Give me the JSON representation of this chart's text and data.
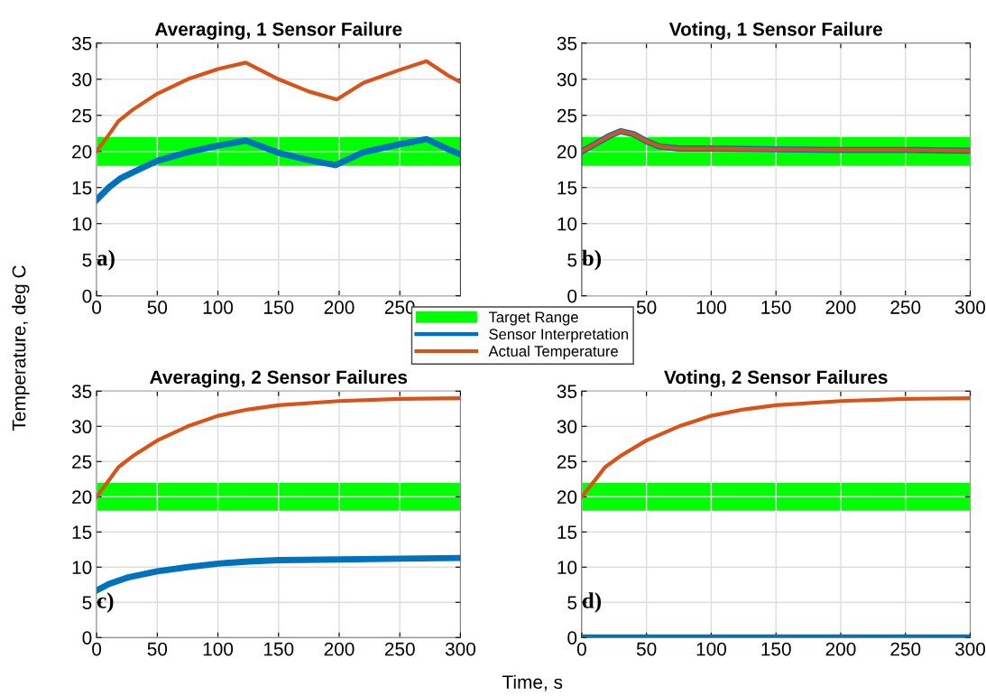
{
  "chart_data": [
    {
      "type": "line",
      "title": "Averaging, 1 Sensor Failure",
      "ylabel": "Temperature, deg C",
      "xlim": [
        0,
        300
      ],
      "ylim": [
        0,
        35
      ],
      "xticks": [
        0,
        50,
        100,
        150,
        200,
        250
      ],
      "yticks": [
        0,
        5,
        10,
        15,
        20,
        25,
        30,
        35
      ],
      "grid": true,
      "legend": "bottom",
      "annotations": [
        "a)"
      ],
      "bands": [
        {
          "axis": "y",
          "from": 18,
          "to": 22,
          "label": "Target Range",
          "color": "#00ff00"
        }
      ],
      "series": [
        {
          "name": "Sensor Interpretation",
          "color": "#0072bd",
          "x": [
            0,
            10,
            20,
            35,
            50,
            75,
            100,
            123,
            150,
            175,
            197,
            220,
            250,
            272,
            290,
            300
          ],
          "values": [
            13.3,
            15,
            16.3,
            17.5,
            18.7,
            19.9,
            20.8,
            21.5,
            19.8,
            18.8,
            18.1,
            19.9,
            21,
            21.7,
            20.3,
            19.6
          ]
        },
        {
          "name": "Actual Temperature",
          "color": "#d95319",
          "x": [
            0,
            10,
            18,
            30,
            50,
            75,
            100,
            123,
            150,
            175,
            198,
            220,
            250,
            272,
            290,
            300
          ],
          "values": [
            20,
            22.3,
            24.2,
            25.8,
            28,
            30,
            31.4,
            32.3,
            30,
            28.3,
            27.2,
            29.5,
            31.3,
            32.5,
            30.5,
            29.6
          ]
        }
      ]
    },
    {
      "type": "line",
      "title": "Voting, 1 Sensor Failure",
      "xlim": [
        0,
        300
      ],
      "ylim": [
        0,
        35
      ],
      "xticks": [
        50,
        100,
        150,
        200,
        250,
        300
      ],
      "yticks": [
        0,
        5,
        10,
        15,
        20,
        25,
        30,
        35
      ],
      "grid": true,
      "annotations": [
        "b)"
      ],
      "bands": [
        {
          "axis": "y",
          "from": 18,
          "to": 22,
          "color": "#00ff00"
        }
      ],
      "series": [
        {
          "color": "#0072bd",
          "x": [
            0,
            10,
            22,
            30,
            40,
            50,
            60,
            75,
            100,
            150,
            200,
            250,
            300
          ],
          "values": [
            20,
            21,
            22.2,
            22.8,
            22.4,
            21.4,
            20.7,
            20.4,
            20.4,
            20.3,
            20.2,
            20.2,
            20.1
          ]
        },
        {
          "color": "#d95319",
          "x": [
            0,
            10,
            22,
            30,
            40,
            50,
            60,
            75,
            100,
            150,
            200,
            250,
            300
          ],
          "values": [
            20,
            21,
            22.2,
            22.8,
            22.4,
            21.4,
            20.7,
            20.4,
            20.4,
            20.3,
            20.2,
            20.2,
            20.1
          ]
        }
      ]
    },
    {
      "type": "line",
      "title": "Averaging, 2 Sensor Failures",
      "xlabel": "Time, s",
      "xlim": [
        0,
        300
      ],
      "ylim": [
        0,
        35
      ],
      "xticks": [
        0,
        50,
        100,
        150,
        200,
        250,
        300
      ],
      "yticks": [
        0,
        5,
        10,
        15,
        20,
        25,
        30,
        35
      ],
      "grid": true,
      "annotations": [
        "c)"
      ],
      "bands": [
        {
          "axis": "y",
          "from": 18,
          "to": 22,
          "color": "#00ff00"
        }
      ],
      "series": [
        {
          "color": "#0072bd",
          "x": [
            0,
            10,
            25,
            50,
            75,
            100,
            125,
            150,
            200,
            250,
            300
          ],
          "values": [
            6.7,
            7.6,
            8.5,
            9.4,
            10,
            10.5,
            10.8,
            11,
            11.1,
            11.2,
            11.3
          ]
        },
        {
          "color": "#d95319",
          "x": [
            0,
            10,
            18,
            30,
            50,
            75,
            100,
            125,
            150,
            200,
            250,
            300
          ],
          "values": [
            20,
            22.3,
            24.2,
            25.8,
            28,
            30,
            31.5,
            32.4,
            33,
            33.6,
            33.9,
            34
          ]
        }
      ]
    },
    {
      "type": "line",
      "title": "Voting, 2 Sensor Failures",
      "xlim": [
        0,
        300
      ],
      "ylim": [
        0,
        35
      ],
      "xticks": [
        0,
        50,
        100,
        150,
        200,
        250,
        300
      ],
      "yticks": [
        0,
        5,
        10,
        15,
        20,
        25,
        30,
        35
      ],
      "grid": true,
      "annotations": [
        "d)"
      ],
      "bands": [
        {
          "axis": "y",
          "from": 18,
          "to": 22,
          "color": "#00ff00"
        }
      ],
      "series": [
        {
          "color": "#0072bd",
          "x": [
            0,
            300
          ],
          "values": [
            0,
            0
          ]
        },
        {
          "color": "#d95319",
          "x": [
            0,
            10,
            18,
            30,
            50,
            75,
            100,
            125,
            150,
            200,
            250,
            300
          ],
          "values": [
            20,
            22.3,
            24.2,
            25.8,
            28,
            30,
            31.5,
            32.4,
            33,
            33.6,
            33.9,
            34
          ]
        }
      ]
    }
  ]
}
